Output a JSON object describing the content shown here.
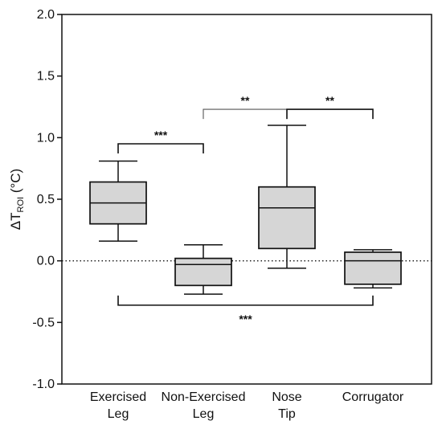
{
  "chart_data": {
    "type": "box",
    "ylabel": {
      "main": "ΔT",
      "sub": "ROI",
      "unit": " (°C)"
    },
    "ylim": [
      -1.0,
      2.0
    ],
    "yticks": [
      "2.0",
      "1.5",
      "1.0",
      "0.5",
      "0.0",
      "-0.5",
      "-1.0"
    ],
    "yticks_values": [
      2.0,
      1.5,
      1.0,
      0.5,
      0.0,
      -0.5,
      -1.0
    ],
    "reference_line": 0.0,
    "grid": false,
    "categories": [
      {
        "line1": "Exercised",
        "line2": "Leg"
      },
      {
        "line1": "Non-Exercised",
        "line2": "Leg"
      },
      {
        "line1": "Nose",
        "line2": "Tip"
      },
      {
        "line1": "Corrugator",
        "line2": ""
      }
    ],
    "boxes": [
      {
        "whisker_low": 0.16,
        "q1": 0.3,
        "median": 0.47,
        "q3": 0.64,
        "whisker_high": 0.81
      },
      {
        "whisker_low": -0.27,
        "q1": -0.2,
        "median": -0.03,
        "q3": 0.02,
        "whisker_high": 0.13
      },
      {
        "whisker_low": -0.06,
        "q1": 0.1,
        "median": 0.43,
        "q3": 0.6,
        "whisker_high": 1.1
      },
      {
        "whisker_low": -0.22,
        "q1": -0.19,
        "median": 0.0,
        "q3": 0.07,
        "whisker_high": 0.09
      }
    ],
    "significance": [
      {
        "from": 0,
        "to": 1,
        "y": 0.95,
        "direction": "down",
        "label": "***",
        "weight": "heavy"
      },
      {
        "from": 1,
        "to": 2,
        "y": 1.23,
        "direction": "down",
        "label": "**",
        "weight": "light"
      },
      {
        "from": 2,
        "to": 3,
        "y": 1.23,
        "direction": "down",
        "label": "**",
        "weight": "heavy"
      },
      {
        "from": 0,
        "to": 3,
        "y": -0.36,
        "direction": "up",
        "label": "***",
        "weight": "heavy"
      }
    ],
    "colors": {
      "box_fill": "#d6d6d6",
      "stroke": "#111111",
      "light_stroke": "#555555"
    }
  }
}
